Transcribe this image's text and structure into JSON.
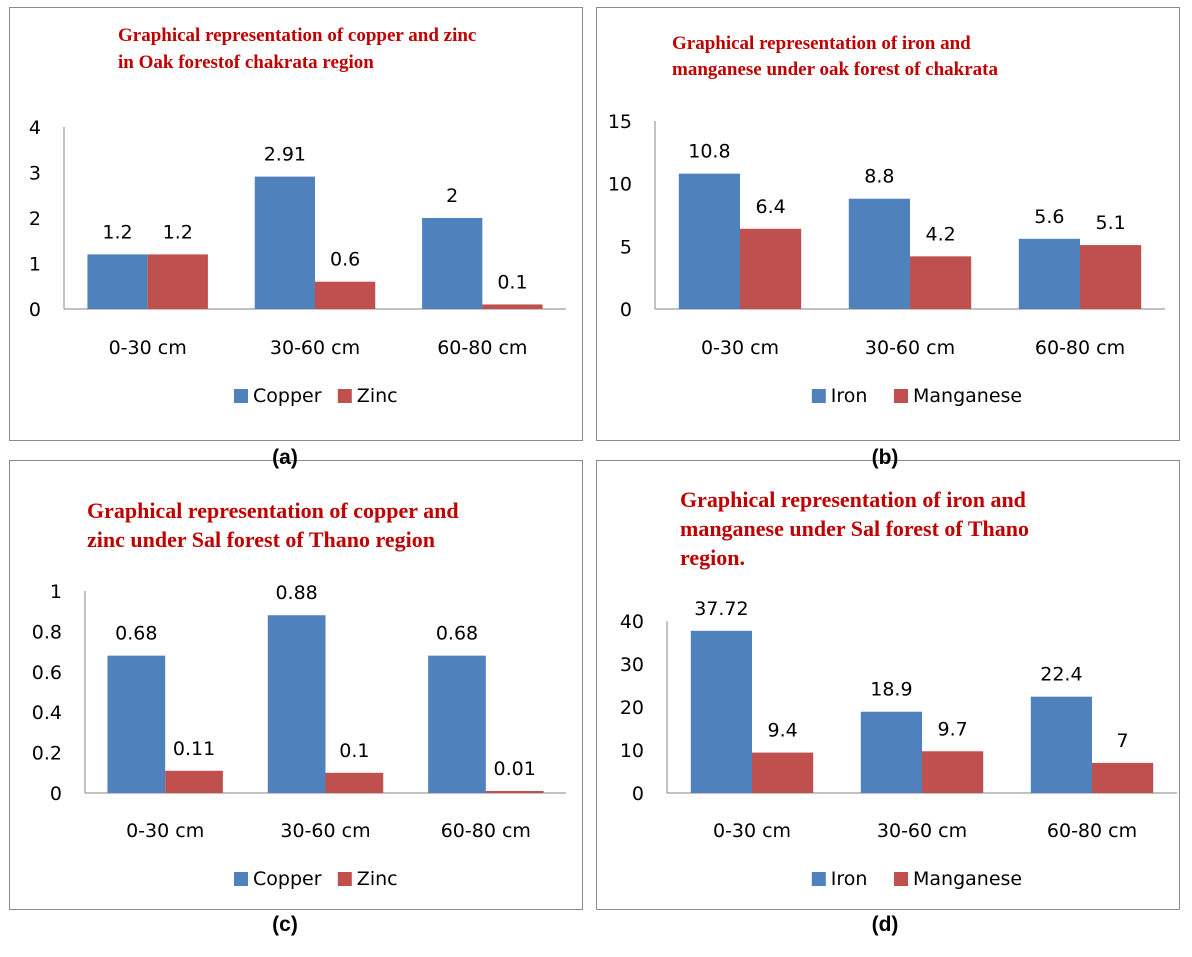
{
  "colors": {
    "series1": "#4f81bd",
    "series2": "#c0504d",
    "title": "#c00000",
    "axis": "#868686"
  },
  "captions": [
    "(a)",
    "(b)",
    "(c)",
    "(d)"
  ],
  "chart_data": [
    {
      "type": "bar",
      "title_lines": [
        "Graphical representation of copper and zinc",
        "in Oak forestof chakrata region"
      ],
      "categories": [
        "0-30 cm",
        "30-60 cm",
        "60-80 cm"
      ],
      "series": [
        {
          "name": "Copper",
          "values": [
            1.2,
            2.91,
            2
          ]
        },
        {
          "name": "Zinc",
          "values": [
            1.2,
            0.6,
            0.1
          ]
        }
      ],
      "data_labels": [
        [
          "1.2",
          "2.91",
          "2"
        ],
        [
          "1.2",
          "0.6",
          "0.1"
        ]
      ],
      "yticks": [
        "0",
        "1",
        "2",
        "3",
        "4"
      ],
      "ylim": [
        0,
        4
      ],
      "legend": "bottom",
      "grid": false
    },
    {
      "type": "bar",
      "title_lines": [
        "Graphical representation of iron and",
        "manganese under oak forest of chakrata"
      ],
      "categories": [
        "0-30 cm",
        "30-60 cm",
        "60-80 cm"
      ],
      "series": [
        {
          "name": "Iron",
          "values": [
            10.8,
            8.8,
            5.6
          ]
        },
        {
          "name": "Manganese",
          "values": [
            6.4,
            4.2,
            5.1
          ]
        }
      ],
      "data_labels": [
        [
          "10.8",
          "8.8",
          "5.6"
        ],
        [
          "6.4",
          "4.2",
          "5.1"
        ]
      ],
      "yticks": [
        "0",
        "5",
        "10",
        "15"
      ],
      "ylim": [
        0,
        15
      ],
      "legend": "bottom",
      "grid": false
    },
    {
      "type": "bar",
      "title_lines": [
        "Graphical representation of copper and",
        "zinc under Sal forest of Thano region"
      ],
      "categories": [
        "0-30 cm",
        "30-60 cm",
        "60-80 cm"
      ],
      "series": [
        {
          "name": "Copper",
          "values": [
            0.68,
            0.88,
            0.68
          ]
        },
        {
          "name": "Zinc",
          "values": [
            0.11,
            0.1,
            0.01
          ]
        }
      ],
      "data_labels": [
        [
          "0.68",
          "0.88",
          "0.68"
        ],
        [
          "0.11",
          "0.1",
          "0.01"
        ]
      ],
      "yticks": [
        "0",
        "0.2",
        "0.4",
        "0.6",
        "0.8",
        "1"
      ],
      "ylim": [
        0,
        1
      ],
      "legend": "bottom",
      "grid": false
    },
    {
      "type": "bar",
      "title_lines": [
        "Graphical representation of iron and",
        "manganese under Sal forest of Thano",
        "region."
      ],
      "categories": [
        "0-30 cm",
        "30-60 cm",
        "60-80 cm"
      ],
      "series": [
        {
          "name": "Iron",
          "values": [
            37.72,
            18.9,
            22.4
          ]
        },
        {
          "name": "Manganese",
          "values": [
            9.4,
            9.7,
            7
          ]
        }
      ],
      "data_labels": [
        [
          "37.72",
          "18.9",
          "22.4"
        ],
        [
          "9.4",
          "9.7",
          "7"
        ]
      ],
      "yticks": [
        "0",
        "10",
        "20",
        "30",
        "40"
      ],
      "ylim": [
        0,
        40
      ],
      "legend": "bottom",
      "grid": false
    }
  ]
}
